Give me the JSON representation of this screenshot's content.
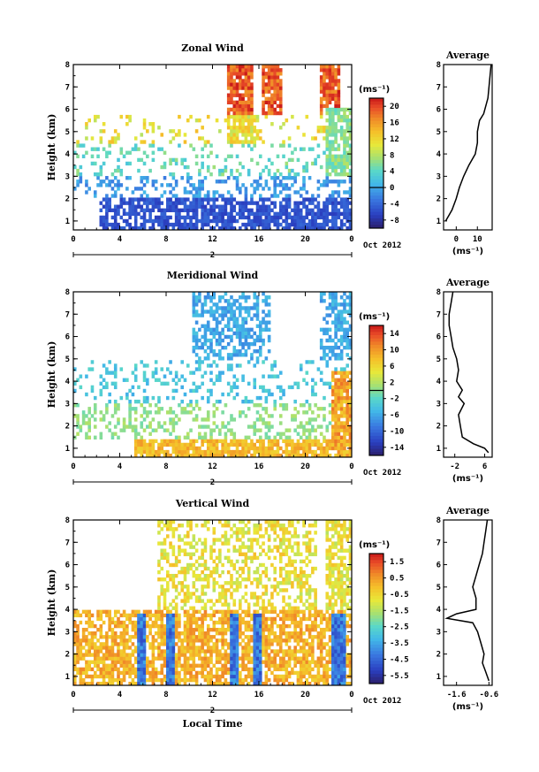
{
  "chart_data": [
    {
      "id": "zonal",
      "type": "heatmap",
      "title": "Zonal Wind",
      "ylabel": "Height (km)",
      "xticks": [
        "0",
        "4",
        "8",
        "12",
        "16",
        "20",
        "0"
      ],
      "yticks": [
        "1",
        "2",
        "3",
        "4",
        "5",
        "6",
        "7",
        "8"
      ],
      "ylim": [
        0.6,
        8.0
      ],
      "xlim": [
        0,
        24
      ],
      "date_label": "Oct 2012",
      "day_label": "2",
      "unit_label": "(ms⁻¹)",
      "colorbar": {
        "labels": [
          "20",
          "16",
          "12",
          "8",
          "4",
          "0",
          "-4",
          "-8"
        ],
        "range": [
          -10,
          22
        ],
        "zero_line": 0
      },
      "avg_title": "Average",
      "avg_xticks": [
        "0",
        "10"
      ],
      "avg_xlim": [
        -6,
        17
      ],
      "avg_unit": "(ms⁻¹)",
      "average_profile": [
        [
          1.0,
          -5
        ],
        [
          1.5,
          -2
        ],
        [
          2.0,
          0
        ],
        [
          2.5,
          1.5
        ],
        [
          3.0,
          3.5
        ],
        [
          3.5,
          6
        ],
        [
          4.0,
          9
        ],
        [
          4.5,
          10
        ],
        [
          5.0,
          10
        ],
        [
          5.5,
          11
        ],
        [
          5.8,
          13
        ],
        [
          6.5,
          15
        ],
        [
          7.0,
          15.5
        ],
        [
          7.5,
          16
        ],
        [
          8.0,
          16.5
        ]
      ]
    },
    {
      "id": "meridional",
      "type": "heatmap",
      "title": "Meridional Wind",
      "ylabel": "Height (km)",
      "xticks": [
        "0",
        "4",
        "8",
        "12",
        "16",
        "20",
        "0"
      ],
      "yticks": [
        "1",
        "2",
        "3",
        "4",
        "5",
        "6",
        "7",
        "8"
      ],
      "ylim": [
        0.6,
        8.0
      ],
      "xlim": [
        0,
        24
      ],
      "date_label": "Oct 2012",
      "day_label": "2",
      "unit_label": "(ms⁻¹)",
      "colorbar": {
        "labels": [
          "14",
          "10",
          "6",
          "2",
          "-2",
          "-6",
          "-10",
          "-14"
        ],
        "range": [
          -16,
          16
        ],
        "zero_line": 0
      },
      "avg_title": "Average",
      "avg_xticks": [
        "-2",
        "6"
      ],
      "avg_xlim": [
        -5,
        8
      ],
      "avg_unit": "(ms⁻¹)",
      "average_profile": [
        [
          0.8,
          7
        ],
        [
          1.0,
          6
        ],
        [
          1.2,
          3
        ],
        [
          1.5,
          0
        ],
        [
          2.0,
          -0.5
        ],
        [
          2.5,
          -1
        ],
        [
          3.0,
          0.5
        ],
        [
          3.3,
          -1
        ],
        [
          3.6,
          0
        ],
        [
          4.0,
          -1.5
        ],
        [
          4.5,
          -1
        ],
        [
          5.0,
          -1.5
        ],
        [
          5.5,
          -2.5
        ],
        [
          6.0,
          -3
        ],
        [
          6.5,
          -3.5
        ],
        [
          7.0,
          -3.5
        ],
        [
          7.5,
          -3
        ],
        [
          8.0,
          -2.5
        ]
      ]
    },
    {
      "id": "vertical",
      "type": "heatmap",
      "title": "Vertical Wind",
      "ylabel": "Height (km)",
      "xlabel": "Local Time",
      "xticks": [
        "0",
        "4",
        "8",
        "12",
        "16",
        "20",
        "0"
      ],
      "yticks": [
        "1",
        "2",
        "3",
        "4",
        "5",
        "6",
        "7",
        "8"
      ],
      "ylim": [
        0.6,
        8.0
      ],
      "xlim": [
        0,
        24
      ],
      "date_label": "Oct 2012",
      "day_label": "2",
      "unit_label": "(ms⁻¹)",
      "colorbar": {
        "labels": [
          "1.5",
          "0.5",
          "-0.5",
          "-1.5",
          "-2.5",
          "-3.5",
          "-4.5",
          "-5.5"
        ],
        "range": [
          -6,
          2
        ]
      },
      "avg_title": "Average",
      "avg_xticks": [
        "-1.6",
        "-0.6"
      ],
      "avg_xlim": [
        -2.0,
        -0.5
      ],
      "avg_unit": "(ms⁻¹)",
      "average_profile": [
        [
          0.8,
          -0.6
        ],
        [
          1.2,
          -0.7
        ],
        [
          1.6,
          -0.8
        ],
        [
          2.0,
          -0.75
        ],
        [
          2.5,
          -0.85
        ],
        [
          3.0,
          -0.95
        ],
        [
          3.4,
          -1.1
        ],
        [
          3.6,
          -1.9
        ],
        [
          3.8,
          -1.6
        ],
        [
          4.0,
          -1.0
        ],
        [
          4.5,
          -1.0
        ],
        [
          5.0,
          -1.1
        ],
        [
          5.5,
          -1.0
        ],
        [
          6.0,
          -0.9
        ],
        [
          6.5,
          -0.8
        ],
        [
          7.0,
          -0.75
        ],
        [
          7.5,
          -0.7
        ],
        [
          8.0,
          -0.65
        ]
      ]
    }
  ]
}
